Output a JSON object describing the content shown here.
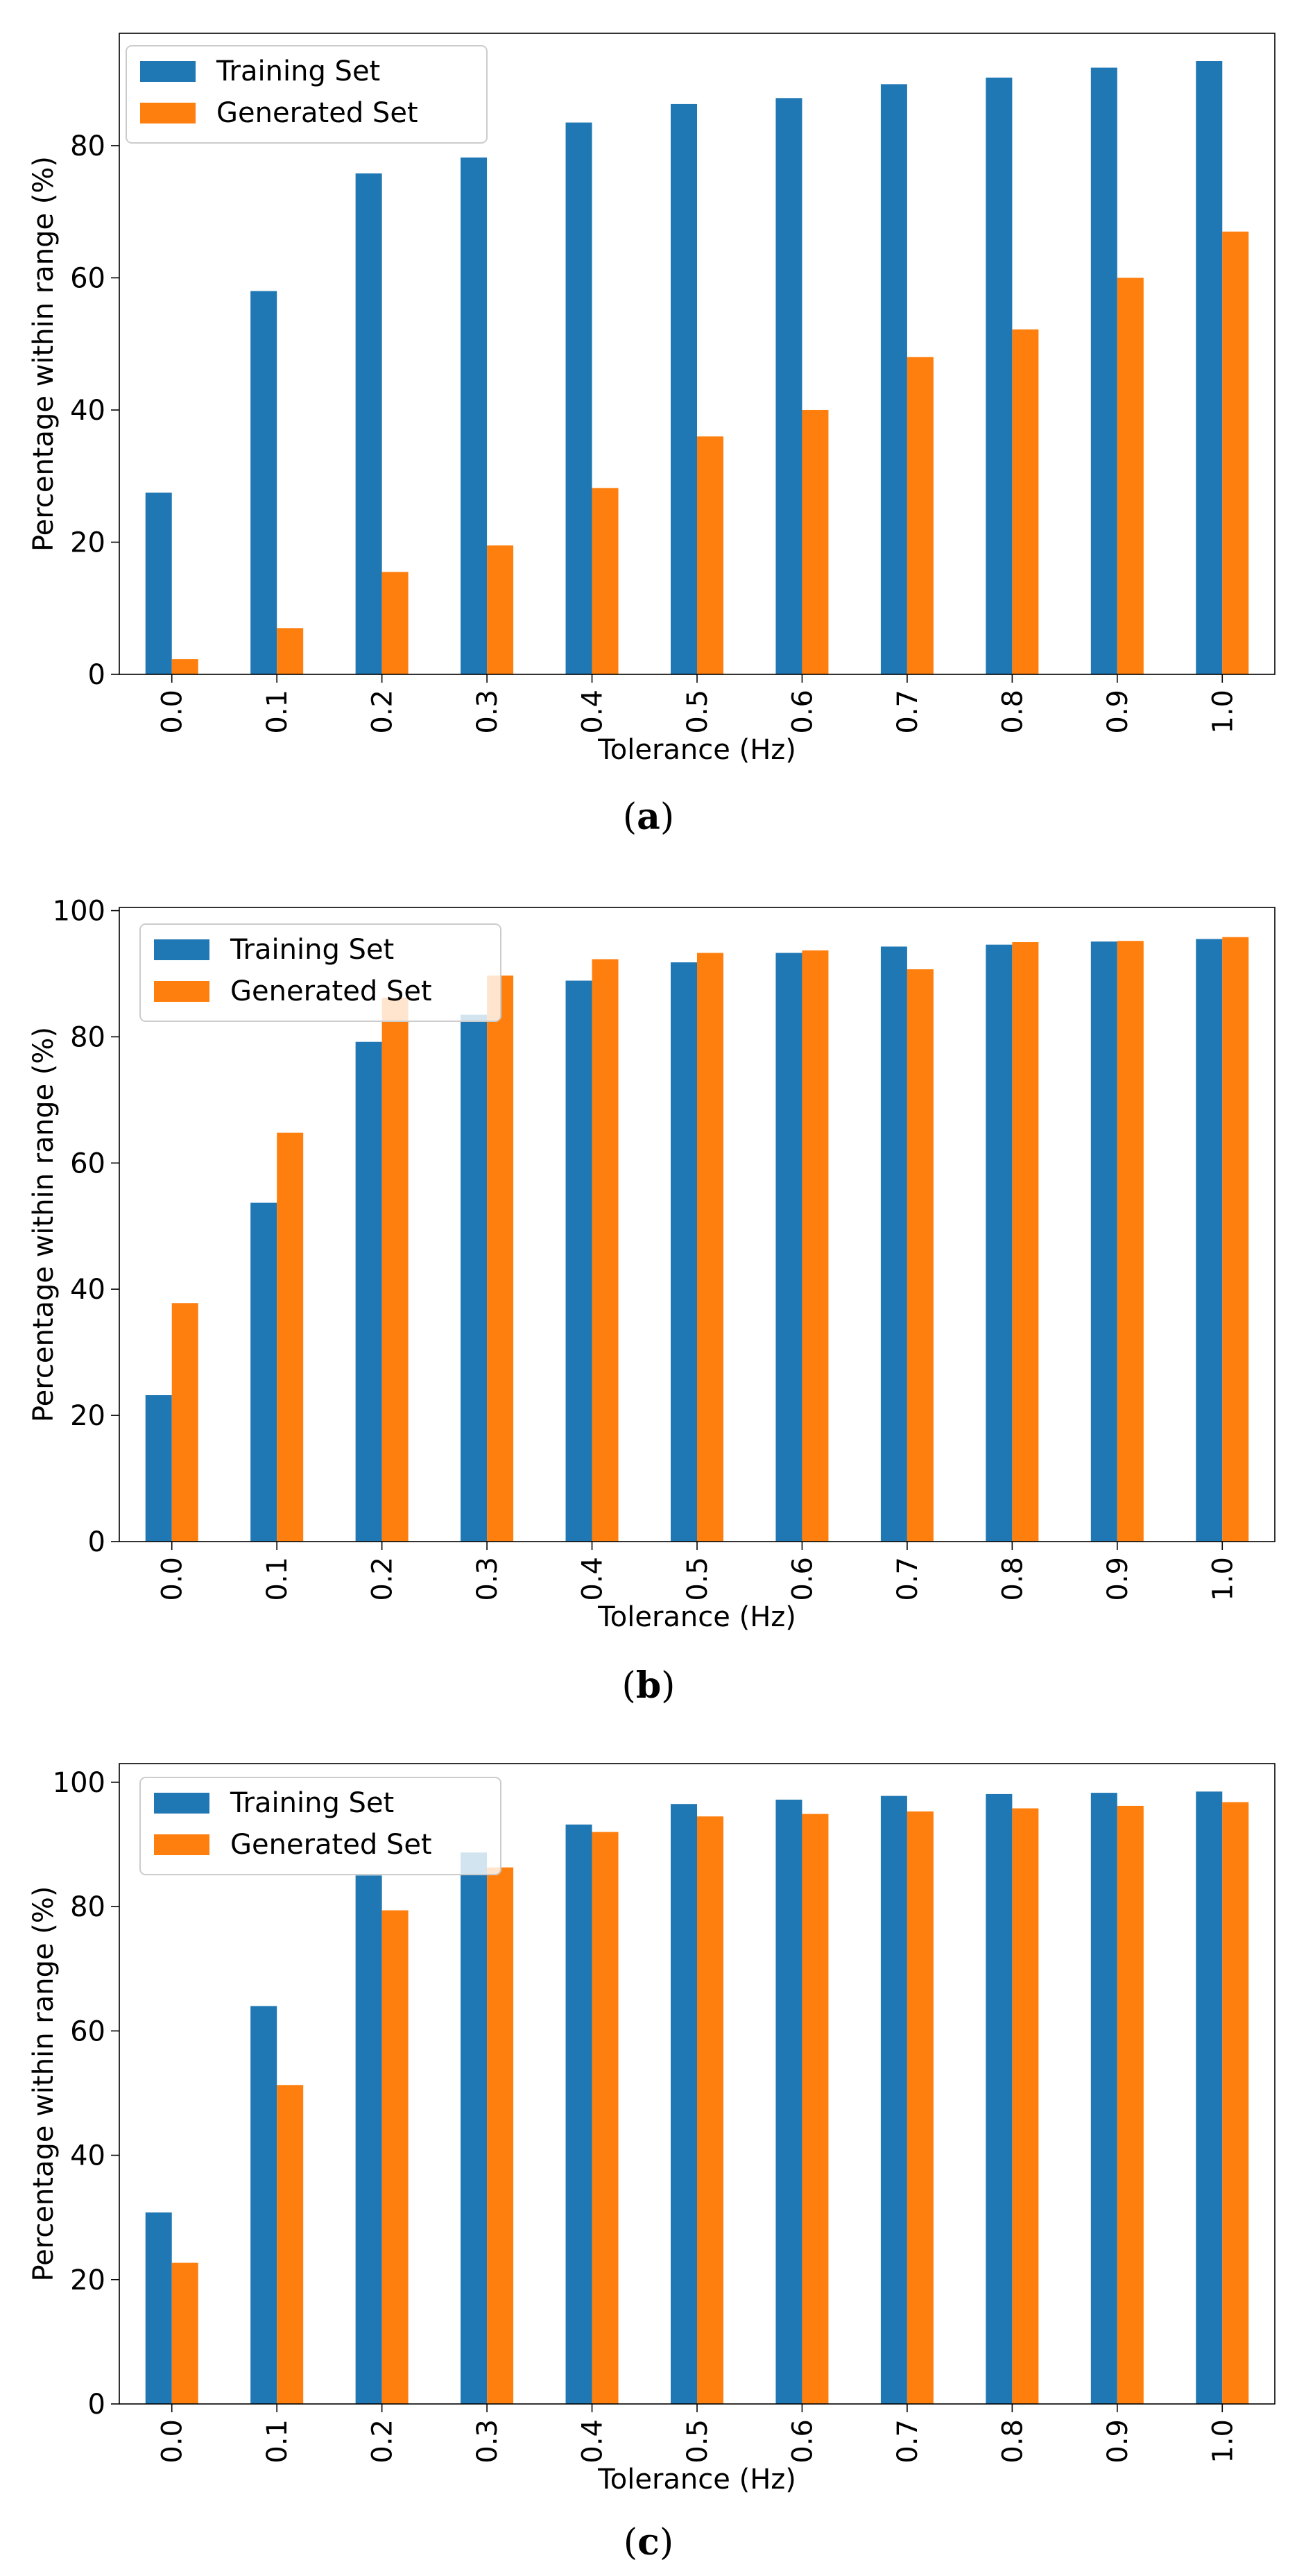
{
  "chart_data": [
    {
      "type": "bar",
      "title": "",
      "caption": "(a)",
      "caption_parts": [
        "(",
        "a",
        ")"
      ],
      "xlabel": "Tolerance (Hz)",
      "ylabel": "Percentage within range (%)",
      "ylim": [
        0,
        97
      ],
      "yticks": [
        0,
        20,
        40,
        60,
        80
      ],
      "categories": [
        "0.0",
        "0.1",
        "0.2",
        "0.3",
        "0.4",
        "0.5",
        "0.6",
        "0.7",
        "0.8",
        "0.9",
        "1.0"
      ],
      "series": [
        {
          "name": "Training Set",
          "color": "#1f77b4",
          "values": [
            27.5,
            58,
            75.8,
            78.2,
            83.5,
            86.3,
            87.2,
            89.3,
            90.3,
            91.8,
            92.8
          ]
        },
        {
          "name": "Generated Set",
          "color": "#ff7f0e",
          "values": [
            2.3,
            7,
            15.5,
            19.5,
            28.2,
            36,
            40,
            48,
            52.2,
            60,
            67
          ]
        }
      ],
      "legend": "top-left",
      "grid": false
    },
    {
      "type": "bar",
      "title": "",
      "caption": "(b)",
      "caption_parts": [
        "(",
        "b",
        ")"
      ],
      "xlabel": "Tolerance (Hz)",
      "ylabel": "Percentage within range (%)",
      "ylim": [
        0,
        100.5
      ],
      "yticks": [
        0,
        20,
        40,
        60,
        80,
        100
      ],
      "categories": [
        "0.0",
        "0.1",
        "0.2",
        "0.3",
        "0.4",
        "0.5",
        "0.6",
        "0.7",
        "0.8",
        "0.9",
        "1.0"
      ],
      "series": [
        {
          "name": "Training Set",
          "color": "#1f77b4",
          "values": [
            23.2,
            53.7,
            79.2,
            83.5,
            88.9,
            91.8,
            93.3,
            94.3,
            94.6,
            95.1,
            95.5
          ]
        },
        {
          "name": "Generated Set",
          "color": "#ff7f0e",
          "values": [
            37.8,
            64.8,
            86.2,
            89.7,
            92.3,
            93.3,
            93.7,
            90.7,
            95,
            95.2,
            95.8
          ]
        }
      ],
      "legend": "top-left",
      "grid": false
    },
    {
      "type": "bar",
      "title": "",
      "caption": "(c)",
      "caption_parts": [
        "(",
        "c",
        ")"
      ],
      "xlabel": "Tolerance (Hz)",
      "ylabel": "Percentage within range (%)",
      "ylim": [
        0,
        103
      ],
      "yticks": [
        0,
        20,
        40,
        60,
        80,
        100
      ],
      "categories": [
        "0.0",
        "0.1",
        "0.2",
        "0.3",
        "0.4",
        "0.5",
        "0.6",
        "0.7",
        "0.8",
        "0.9",
        "1.0"
      ],
      "series": [
        {
          "name": "Training Set",
          "color": "#1f77b4",
          "values": [
            30.8,
            64,
            85,
            88.7,
            93.2,
            96.5,
            97.2,
            97.8,
            98.1,
            98.3,
            98.5
          ]
        },
        {
          "name": "Generated Set",
          "color": "#ff7f0e",
          "values": [
            22.7,
            51.3,
            79.4,
            86.3,
            92,
            94.5,
            94.9,
            95.3,
            95.8,
            96.2,
            96.8
          ]
        }
      ],
      "legend": "top-left",
      "grid": false
    }
  ]
}
